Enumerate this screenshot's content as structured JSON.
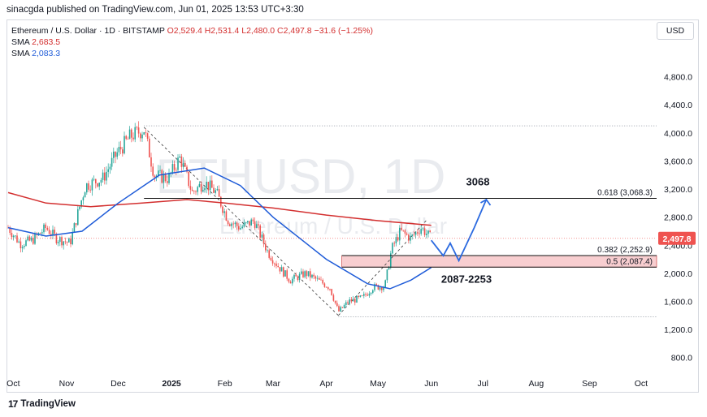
{
  "publisher": "sinacgda published on TradingView.com, Jun 01, 2025 13:53 UTC+3:30",
  "legend": {
    "symbol": "Ethereum / U.S. Dollar · 1D · BITSTAMP",
    "ohlc": "O2,529.4 H2,531.4 L2,480.0 C2,497.8 −31.6 (−1.25%)",
    "sma1_label": "SMA",
    "sma1_value": "2,683.5",
    "sma2_label": "SMA",
    "sma2_value": "2,083.3"
  },
  "currency_button": "USD",
  "watermark": {
    "ticker": "ETHUSD, 1D",
    "name": "Ethereum / U.S. Dollar"
  },
  "footer_logo": "TradingView",
  "colors": {
    "up": "#26a69a",
    "down": "#ef5350",
    "sma_long": "#d32f2f",
    "sma_short": "#1e5bd8",
    "projection": "#2b6ae0",
    "zone_fill": "#f7c5c8",
    "price_badge": "#ef5350"
  },
  "chart_data": {
    "type": "candlestick",
    "ylim": [
      600,
      5200
    ],
    "y_ticks": [
      "800.0",
      "1,200.0",
      "1,600.0",
      "2,000.0",
      "2,400.0",
      "2,800.0",
      "3,200.0",
      "3,600.0",
      "4,000.0",
      "4,400.0",
      "4,800.0"
    ],
    "x_ticks": [
      "Oct",
      "Nov",
      "Dec",
      "2025",
      "Feb",
      "Mar",
      "Apr",
      "May",
      "Jun",
      "Jul",
      "Aug",
      "Sep",
      "Oct"
    ],
    "last_price": "2,497.8",
    "price_path": [
      {
        "x": "2024-09-28",
        "y": 2650
      },
      {
        "x": "2024-10-05",
        "y": 2420
      },
      {
        "x": "2024-10-12",
        "y": 2470
      },
      {
        "x": "2024-10-20",
        "y": 2650
      },
      {
        "x": "2024-10-26",
        "y": 2500
      },
      {
        "x": "2024-11-03",
        "y": 2430
      },
      {
        "x": "2024-11-08",
        "y": 2900
      },
      {
        "x": "2024-11-12",
        "y": 3250
      },
      {
        "x": "2024-11-22",
        "y": 3350
      },
      {
        "x": "2024-11-30",
        "y": 3700
      },
      {
        "x": "2024-12-08",
        "y": 3950
      },
      {
        "x": "2024-12-16",
        "y": 4050
      },
      {
        "x": "2024-12-22",
        "y": 3400
      },
      {
        "x": "2024-12-30",
        "y": 3350
      },
      {
        "x": "2025-01-06",
        "y": 3650
      },
      {
        "x": "2025-01-13",
        "y": 3150
      },
      {
        "x": "2025-01-20",
        "y": 3300
      },
      {
        "x": "2025-01-27",
        "y": 3150
      },
      {
        "x": "2025-02-03",
        "y": 2750
      },
      {
        "x": "2025-02-10",
        "y": 2650
      },
      {
        "x": "2025-02-18",
        "y": 2750
      },
      {
        "x": "2025-02-26",
        "y": 2300
      },
      {
        "x": "2025-03-04",
        "y": 2100
      },
      {
        "x": "2025-03-11",
        "y": 1900
      },
      {
        "x": "2025-03-20",
        "y": 2000
      },
      {
        "x": "2025-03-27",
        "y": 1900
      },
      {
        "x": "2025-04-03",
        "y": 1800
      },
      {
        "x": "2025-04-08",
        "y": 1450
      },
      {
        "x": "2025-04-14",
        "y": 1600
      },
      {
        "x": "2025-04-22",
        "y": 1650
      },
      {
        "x": "2025-04-28",
        "y": 1800
      },
      {
        "x": "2025-05-05",
        "y": 1820
      },
      {
        "x": "2025-05-09",
        "y": 2350
      },
      {
        "x": "2025-05-14",
        "y": 2600
      },
      {
        "x": "2025-05-20",
        "y": 2500
      },
      {
        "x": "2025-05-26",
        "y": 2650
      },
      {
        "x": "2025-06-01",
        "y": 2498
      }
    ],
    "series": [
      {
        "name": "SMA",
        "value_label": "2,683.5",
        "points": [
          {
            "x": "2024-09-28",
            "y": 3150
          },
          {
            "x": "2024-10-20",
            "y": 3000
          },
          {
            "x": "2024-11-15",
            "y": 2950
          },
          {
            "x": "2024-12-15",
            "y": 3000
          },
          {
            "x": "2025-01-10",
            "y": 3050
          },
          {
            "x": "2025-02-01",
            "y": 3000
          },
          {
            "x": "2025-03-01",
            "y": 2930
          },
          {
            "x": "2025-04-01",
            "y": 2830
          },
          {
            "x": "2025-05-01",
            "y": 2750
          },
          {
            "x": "2025-06-01",
            "y": 2684
          }
        ]
      },
      {
        "name": "SMA",
        "value_label": "2,083.3",
        "points": [
          {
            "x": "2024-09-28",
            "y": 2650
          },
          {
            "x": "2024-10-20",
            "y": 2530
          },
          {
            "x": "2024-11-10",
            "y": 2600
          },
          {
            "x": "2024-12-01",
            "y": 3000
          },
          {
            "x": "2024-12-25",
            "y": 3400
          },
          {
            "x": "2025-01-20",
            "y": 3500
          },
          {
            "x": "2025-02-10",
            "y": 3250
          },
          {
            "x": "2025-03-01",
            "y": 2800
          },
          {
            "x": "2025-04-01",
            "y": 2200
          },
          {
            "x": "2025-04-25",
            "y": 1850
          },
          {
            "x": "2025-05-08",
            "y": 1780
          },
          {
            "x": "2025-05-20",
            "y": 1900
          },
          {
            "x": "2025-06-01",
            "y": 2083
          }
        ]
      }
    ],
    "fib_levels": [
      {
        "label": "0.618 (3,068.3)",
        "value": 3068.3
      },
      {
        "label": "0.382 (2,252.9)",
        "value": 2252.9
      },
      {
        "label": "0.5 (2,087.4)",
        "value": 2087.4
      }
    ],
    "zone": {
      "low": 2087,
      "high": 2253,
      "label": "2087-2253",
      "from": "2025-04-10",
      "to": "2025-10-01"
    },
    "target_label": "3068",
    "projection": [
      {
        "x": "2025-06-01",
        "y": 2470
      },
      {
        "x": "2025-06-08",
        "y": 2250
      },
      {
        "x": "2025-06-12",
        "y": 2430
      },
      {
        "x": "2025-06-17",
        "y": 2180
      },
      {
        "x": "2025-06-26",
        "y": 2650
      },
      {
        "x": "2025-07-03",
        "y": 3050
      }
    ],
    "pattern_lines": [
      [
        {
          "x": "2024-12-16",
          "y": 4080
        },
        {
          "x": "2025-04-08",
          "y": 1400
        }
      ],
      [
        {
          "x": "2025-04-08",
          "y": 1400
        },
        {
          "x": "2025-05-29",
          "y": 2750
        }
      ]
    ],
    "hlines": [
      {
        "value": 4100,
        "from": "2024-12-16"
      },
      {
        "value": 1380,
        "from": "2025-04-08"
      }
    ]
  }
}
